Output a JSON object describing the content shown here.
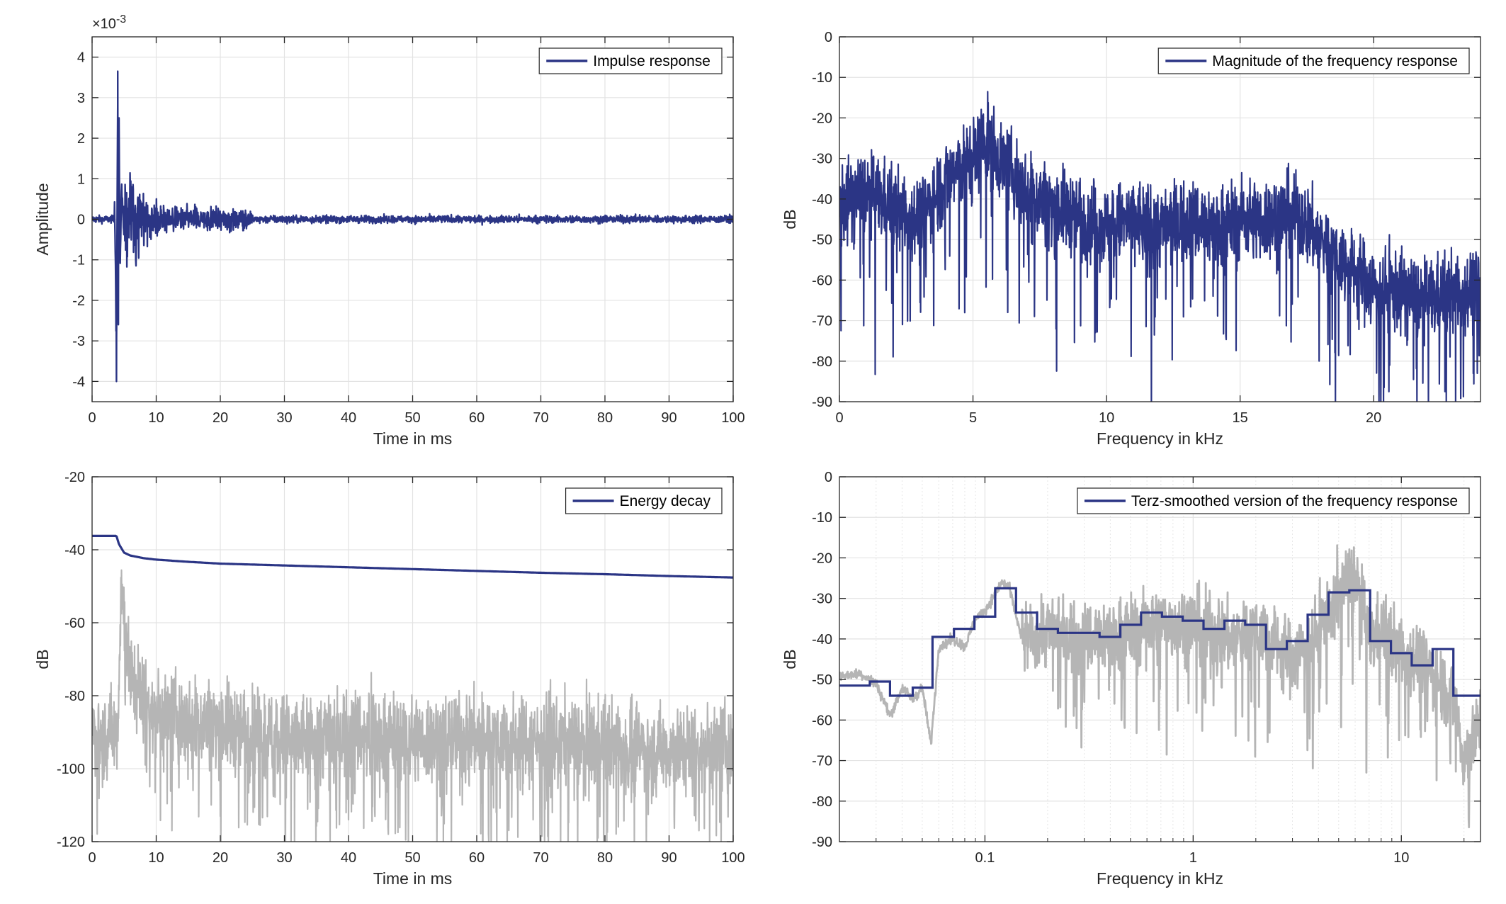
{
  "colors": {
    "primary": "#2b3585",
    "secondary": "#b5b5b5",
    "axis": "#262626",
    "grid": "#e3e3e3"
  },
  "chart_data": [
    {
      "id": "impulse",
      "type": "line",
      "xlabel": "Time in ms",
      "ylabel": "Amplitude",
      "exponent_label": "×10",
      "exponent_power": "-3",
      "xlim": [
        0,
        100
      ],
      "ylim": [
        -4.5,
        4.5
      ],
      "xticks": [
        0,
        10,
        20,
        30,
        40,
        50,
        60,
        70,
        80,
        90,
        100
      ],
      "yticks": [
        -4,
        -3,
        -2,
        -1,
        0,
        1,
        2,
        3,
        4
      ],
      "grid": true,
      "legend_position": "top-right",
      "series": [
        {
          "name": "Impulse response",
          "color": "#2b3585",
          "x": [
            0,
            2,
            3,
            3.5,
            3.8,
            4.0,
            4.1,
            4.2,
            4.4,
            4.6,
            5.0,
            5.5,
            6,
            7,
            8,
            9,
            10,
            12,
            14,
            16,
            18,
            20,
            22,
            25,
            30,
            40,
            50,
            60,
            70,
            80,
            90,
            100
          ],
          "y": [
            0.05,
            -0.05,
            0.1,
            0.6,
            -4.0,
            3.65,
            -2.6,
            2.5,
            -1.5,
            1.2,
            -0.8,
            0.9,
            -0.5,
            0.4,
            -0.4,
            0.3,
            -0.3,
            0.35,
            -0.25,
            0.4,
            -0.2,
            0.35,
            -0.2,
            0.2,
            -0.15,
            0.12,
            -0.12,
            0.1,
            0.12,
            -0.1,
            0.08,
            0.0
          ]
        }
      ]
    },
    {
      "id": "magnitude",
      "type": "line",
      "xlabel": "Frequency in kHz",
      "ylabel": "dB",
      "xlim": [
        0,
        24
      ],
      "ylim": [
        -90,
        0
      ],
      "xticks": [
        0,
        5,
        10,
        15,
        20
      ],
      "yticks": [
        0,
        -10,
        -20,
        -30,
        -40,
        -50,
        -60,
        -70,
        -80,
        -90
      ],
      "grid": true,
      "legend_position": "top-right",
      "series": [
        {
          "name": "Magnitude of the frequency response",
          "color": "#2b3585",
          "x": [
            0,
            1,
            2,
            3,
            4,
            5,
            5.5,
            6,
            7,
            8,
            9,
            10,
            11,
            12,
            13,
            14,
            15,
            16,
            17,
            18,
            19,
            20,
            21,
            22,
            23,
            24
          ],
          "y": [
            -42,
            -38,
            -42,
            -45,
            -35,
            -30,
            -25,
            -30,
            -38,
            -42,
            -44,
            -47,
            -45,
            -47,
            -45,
            -47,
            -45,
            -45,
            -43,
            -50,
            -56,
            -62,
            -63,
            -65,
            -63,
            -62
          ]
        }
      ]
    },
    {
      "id": "energy",
      "type": "line",
      "xlabel": "Time in ms",
      "ylabel": "dB",
      "xlim": [
        0,
        100
      ],
      "ylim": [
        -120,
        -20
      ],
      "xticks": [
        0,
        10,
        20,
        30,
        40,
        50,
        60,
        70,
        80,
        90,
        100
      ],
      "yticks": [
        -20,
        -40,
        -60,
        -80,
        -100,
        -120
      ],
      "grid": true,
      "legend_position": "top-right",
      "series": [
        {
          "name": "Energy decay",
          "color": "#2b3585",
          "x": [
            0,
            3.8,
            4.2,
            5,
            6,
            8,
            10,
            15,
            20,
            30,
            40,
            50,
            60,
            70,
            80,
            90,
            100
          ],
          "y": [
            -36.2,
            -36.2,
            -38.5,
            -40.8,
            -41.6,
            -42.3,
            -42.7,
            -43.3,
            -43.8,
            -44.3,
            -44.8,
            -45.3,
            -45.8,
            -46.3,
            -46.7,
            -47.2,
            -47.6
          ]
        },
        {
          "color": "#b5b5b5",
          "x": [
            0,
            4,
            4.5,
            6,
            10,
            20,
            30,
            40,
            50,
            60,
            70,
            80,
            90,
            100
          ],
          "y": [
            -90,
            -90,
            -50,
            -75,
            -85,
            -88,
            -92,
            -90,
            -92,
            -91,
            -92,
            -93,
            -95,
            -94
          ]
        }
      ]
    },
    {
      "id": "terz",
      "type": "line",
      "xlabel": "Frequency in kHz",
      "ylabel": "dB",
      "xscale": "log",
      "xlim": [
        0.02,
        24
      ],
      "ylim": [
        -90,
        0
      ],
      "xticks": [
        0.1,
        1,
        10
      ],
      "xtick_labels": [
        "0.1",
        "1",
        "10"
      ],
      "yticks": [
        0,
        -10,
        -20,
        -30,
        -40,
        -50,
        -60,
        -70,
        -80,
        -90
      ],
      "grid": true,
      "legend_position": "top-right",
      "series": [
        {
          "name": "Terz-smoothed version of the frequency response",
          "color": "#2b3585",
          "step_edges": [
            0.02,
            0.028,
            0.035,
            0.045,
            0.056,
            0.071,
            0.089,
            0.112,
            0.141,
            0.178,
            0.224,
            0.282,
            0.355,
            0.447,
            0.562,
            0.708,
            0.891,
            1.122,
            1.413,
            1.778,
            2.239,
            2.818,
            3.548,
            4.467,
            5.623,
            7.079,
            8.913,
            11.22,
            14.13,
            17.78,
            24
          ],
          "values": [
            -51.5,
            -50.5,
            -54,
            -52,
            -39.5,
            -37.5,
            -34.5,
            -27.5,
            -33.5,
            -37.5,
            -38.5,
            -38.5,
            -39.5,
            -36.5,
            -33.5,
            -34.5,
            -35.5,
            -37.5,
            -35.5,
            -36.5,
            -42.5,
            -40.5,
            -34,
            -28.5,
            -28,
            -40.5,
            -43.5,
            -46.5,
            -42.5,
            -54
          ]
        },
        {
          "color": "#b5b5b5",
          "x": [
            0.02,
            0.025,
            0.03,
            0.035,
            0.04,
            0.045,
            0.05,
            0.055,
            0.06,
            0.07,
            0.08,
            0.09,
            0.1,
            0.12,
            0.13,
            0.15,
            0.2,
            0.3,
            0.5,
            0.7,
            1,
            1.5,
            2,
            3,
            4,
            5,
            6,
            7,
            8,
            10,
            12,
            15,
            18,
            20,
            24
          ],
          "y": [
            -49,
            -48.5,
            -51,
            -59,
            -52,
            -55,
            -52,
            -66,
            -42,
            -40,
            -42,
            -35,
            -33,
            -26,
            -27,
            -40,
            -38,
            -40,
            -38,
            -36,
            -36,
            -40,
            -37,
            -45,
            -38,
            -28,
            -24,
            -40,
            -38,
            -43,
            -45,
            -50,
            -55,
            -70,
            -60
          ]
        }
      ]
    }
  ]
}
